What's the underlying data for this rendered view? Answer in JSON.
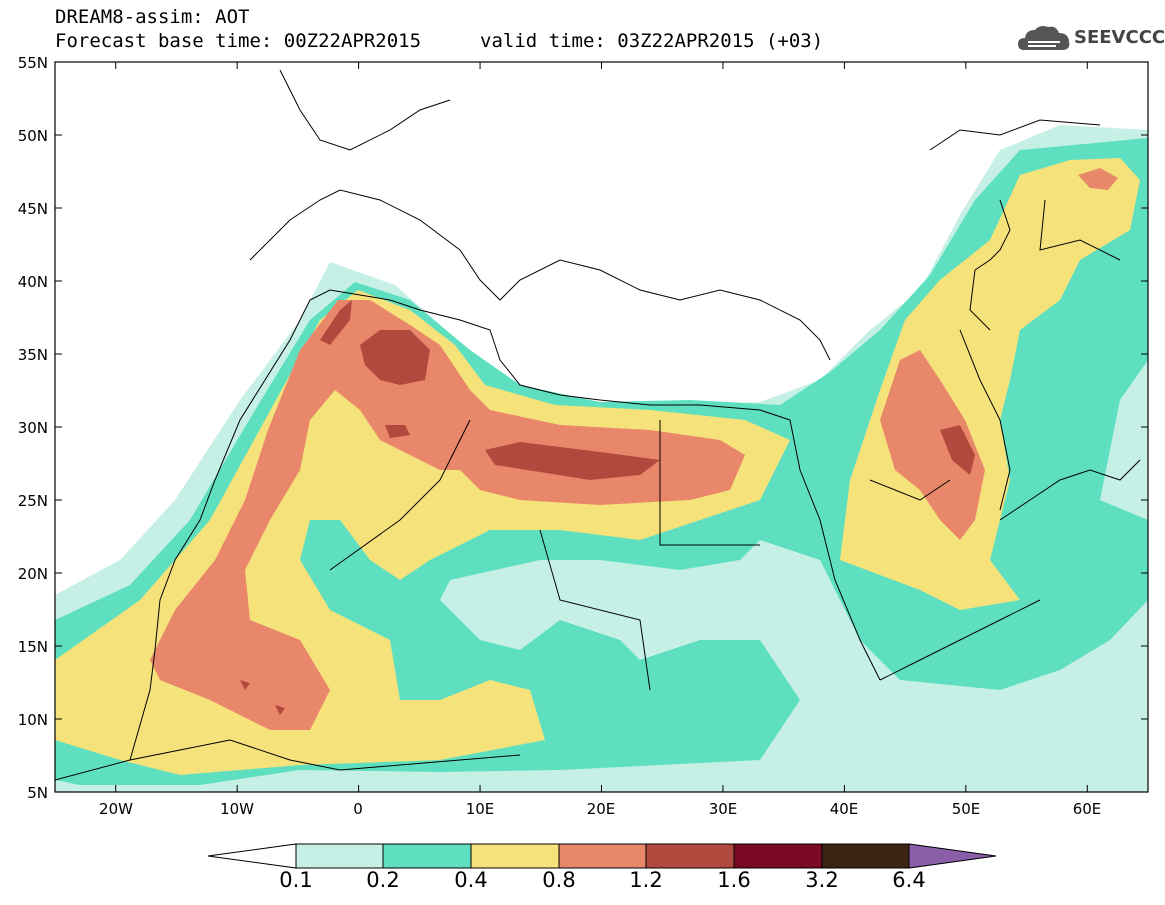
{
  "header": {
    "title": "DREAM8-assim: AOT",
    "base_time": "Forecast base time: 00Z22APR2015",
    "valid_time": "valid time: 03Z22APR2015 (+03)"
  },
  "logo": {
    "text": "SEEVCCC",
    "icon": "cloud-logo-icon"
  },
  "axes": {
    "y_ticks": [
      "55N",
      "50N",
      "45N",
      "40N",
      "35N",
      "30N",
      "25N",
      "20N",
      "15N",
      "10N",
      "5N"
    ],
    "x_ticks": [
      "20W",
      "10W",
      "0",
      "10E",
      "20E",
      "30E",
      "40E",
      "50E",
      "60E"
    ],
    "lon_range": [
      -25,
      65
    ],
    "lat_range": [
      5,
      55
    ]
  },
  "colorbar": {
    "levels": [
      "0.1",
      "0.2",
      "0.4",
      "0.8",
      "1.2",
      "1.6",
      "3.2",
      "6.4"
    ],
    "colors": [
      "#ffffff",
      "#c6f0e6",
      "#5ee0c0",
      "#f6e27a",
      "#e8876a",
      "#b04a3e",
      "#7a0a24",
      "#3c2414",
      "#8a5ea8"
    ]
  },
  "colors": {
    "c1": "#c6f0e6",
    "c2": "#5ee0c0",
    "c3": "#f6e27a",
    "c4": "#e8876a",
    "c5": "#b04a3e"
  }
}
